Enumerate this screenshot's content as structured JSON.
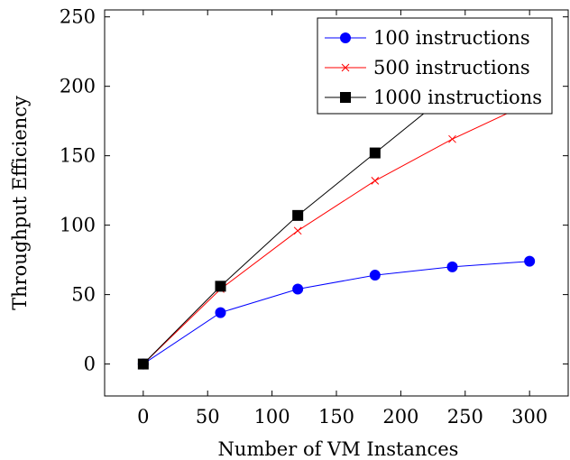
{
  "chart_data": {
    "type": "line",
    "xlabel": "Number of VM Instances",
    "ylabel": "Throughput Efficiency",
    "xlim": [
      -30,
      330
    ],
    "ylim": [
      -23,
      255
    ],
    "xticks": [
      0,
      50,
      100,
      150,
      200,
      250,
      300
    ],
    "yticks": [
      0,
      50,
      100,
      150,
      200,
      250
    ],
    "grid": false,
    "legend_position": "top-right",
    "series": [
      {
        "name": "100 instructions",
        "color": "#0000ff",
        "marker": "circle",
        "x": [
          0,
          60,
          120,
          180,
          240,
          300
        ],
        "y": [
          0,
          37,
          54,
          64,
          70,
          74
        ]
      },
      {
        "name": "500 instructions",
        "color": "#ff0000",
        "marker": "x",
        "x": [
          0,
          60,
          120,
          180,
          240,
          300
        ],
        "y": [
          0,
          54,
          96,
          132,
          162,
          188
        ]
      },
      {
        "name": "1000 instructions",
        "color": "#000000",
        "marker": "square",
        "x": [
          0,
          60,
          120,
          180,
          240
        ],
        "y": [
          0,
          56,
          107,
          152,
          197
        ]
      }
    ]
  }
}
